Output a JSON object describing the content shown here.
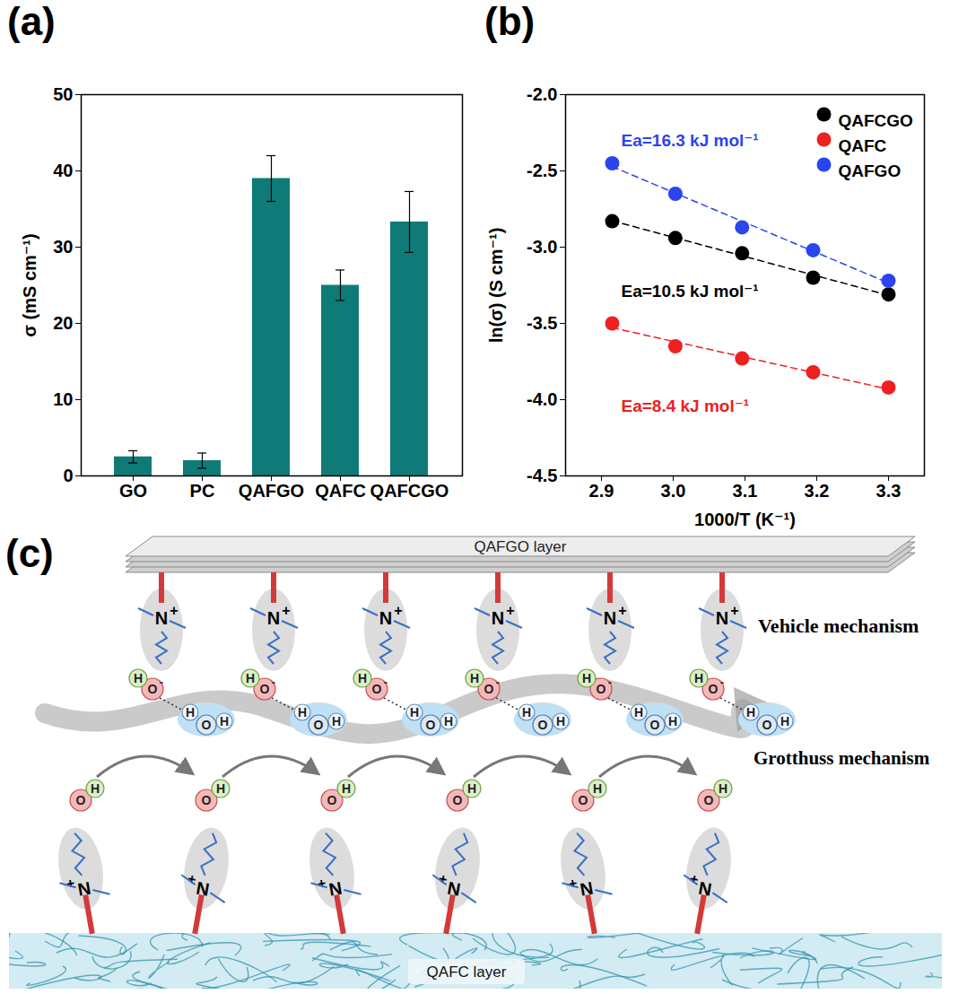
{
  "chart_data": [
    {
      "type": "bar",
      "title": "(a)",
      "categories": [
        "GO",
        "PC",
        "QAFGO",
        "QAFC",
        "QAFCGO"
      ],
      "values": [
        2.5,
        2.0,
        39.0,
        25.0,
        33.3
      ],
      "errors": [
        0.8,
        1.0,
        3.0,
        2.0,
        4.0
      ],
      "color": "#0f7b78",
      "ylabel": "σ (mS cm⁻¹)",
      "ylim": [
        0,
        50
      ],
      "yticks": [
        0,
        10,
        20,
        30,
        40,
        50
      ],
      "grid": false
    },
    {
      "type": "scatter",
      "title": "(b)",
      "x": [
        2.915,
        3.003,
        3.096,
        3.195,
        3.3
      ],
      "xlabel": "1000/T (K⁻¹)",
      "ylabel": "ln(σ) (S cm⁻¹)",
      "xlim": [
        2.85,
        3.35
      ],
      "xticks": [
        2.9,
        {
          "value": 3,
          "label": "3.0"
        },
        3.1,
        3.2,
        3.3
      ],
      "ylim": [
        -4.5,
        -2.0
      ],
      "yticks": [
        -4.5,
        {
          "value": -4,
          "label": "-4.0"
        },
        -3.5,
        {
          "value": -3,
          "label": "-3.0"
        },
        -2.5,
        {
          "value": -2,
          "label": "-2.0"
        }
      ],
      "series": [
        {
          "name": "QAFCGO",
          "color": "#000000",
          "values": [
            -2.83,
            -2.94,
            -3.04,
            -3.2,
            -3.31
          ],
          "annotation": "Ea=10.5 kJ mol⁻¹"
        },
        {
          "name": "QAFC",
          "color": "#ee2020",
          "values": [
            -3.5,
            -3.65,
            -3.73,
            -3.82,
            -3.92
          ],
          "annotation": "Ea=8.4 kJ mol⁻¹"
        },
        {
          "name": "QAFGO",
          "color": "#2b44f0",
          "values": [
            -2.45,
            -2.65,
            -2.87,
            -3.02,
            -3.22
          ],
          "annotation": "Ea=16.3 kJ mol⁻¹"
        }
      ],
      "marker": "circle",
      "line_style": "dashed",
      "legend": "top-right",
      "grid": false
    }
  ],
  "diagram": {
    "title": "(c)",
    "top_layer": "QAFGO layer",
    "bottom_layer": "QAFC layer",
    "mechanisms": [
      "Vehicle mechanism",
      "Grotthuss mechanism"
    ],
    "atoms": {
      "nitrogen": "N",
      "positive": "+",
      "oxygen": "O",
      "negative": "-",
      "hydrogen": "H"
    }
  }
}
